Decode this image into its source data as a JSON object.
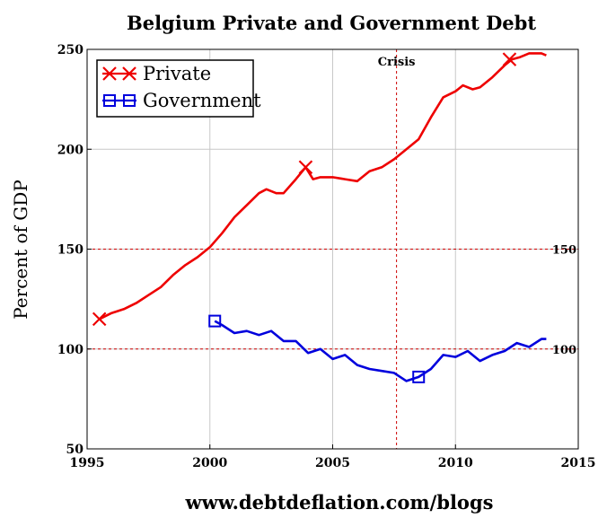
{
  "chart_data": {
    "type": "line",
    "title": "Belgium Private and Government Debt",
    "ylabel": "Percent of GDP",
    "xlabel": "",
    "footer": "www.debtdeflation.com/blogs",
    "xlim": [
      1995,
      2015
    ],
    "ylim": [
      50,
      250
    ],
    "x_ticks": [
      "1995",
      "2000",
      "2005",
      "2010",
      "2015"
    ],
    "y_ticks": [
      "50",
      "100",
      "150",
      "200",
      "250"
    ],
    "legend_position": "top-left",
    "grid": true,
    "reference_lines": [
      {
        "axis": "y",
        "value": 150,
        "label": "150",
        "color": "#cc0000"
      },
      {
        "axis": "y",
        "value": 100,
        "label": "100",
        "color": "#cc0000"
      },
      {
        "axis": "x",
        "value": 2007.6,
        "label": "Crisis",
        "color": "#cc0000"
      }
    ],
    "series": [
      {
        "name": "Private",
        "color": "#ee0000",
        "marker": "x",
        "points": [
          [
            1995.5,
            115
          ],
          [
            1996,
            118
          ],
          [
            1996.5,
            120
          ],
          [
            1997,
            123
          ],
          [
            1997.5,
            127
          ],
          [
            1998,
            131
          ],
          [
            1998.5,
            137
          ],
          [
            1999,
            142
          ],
          [
            1999.5,
            146
          ],
          [
            2000,
            151
          ],
          [
            2000.5,
            158
          ],
          [
            2001,
            166
          ],
          [
            2001.5,
            172
          ],
          [
            2002,
            178
          ],
          [
            2002.3,
            180
          ],
          [
            2002.7,
            178
          ],
          [
            2003,
            178
          ],
          [
            2003.5,
            185
          ],
          [
            2003.9,
            191
          ],
          [
            2004.2,
            185
          ],
          [
            2004.5,
            186
          ],
          [
            2005,
            186
          ],
          [
            2005.5,
            185
          ],
          [
            2006,
            184
          ],
          [
            2006.5,
            189
          ],
          [
            2007,
            191
          ],
          [
            2007.5,
            195
          ],
          [
            2008,
            200
          ],
          [
            2008.5,
            205
          ],
          [
            2009,
            216
          ],
          [
            2009.5,
            226
          ],
          [
            2010,
            229
          ],
          [
            2010.3,
            232
          ],
          [
            2010.7,
            230
          ],
          [
            2011,
            231
          ],
          [
            2011.5,
            236
          ],
          [
            2012,
            242
          ],
          [
            2012.3,
            245
          ],
          [
            2012.6,
            246
          ],
          [
            2013,
            248
          ],
          [
            2013.5,
            248
          ],
          [
            2013.7,
            247
          ]
        ],
        "marker_points": [
          [
            1995.5,
            115
          ],
          [
            2003.9,
            191
          ],
          [
            2012.2,
            245
          ]
        ]
      },
      {
        "name": "Government",
        "color": "#0000dd",
        "marker": "square",
        "points": [
          [
            2000.2,
            114
          ],
          [
            2000.5,
            112
          ],
          [
            2001,
            108
          ],
          [
            2001.5,
            109
          ],
          [
            2002,
            107
          ],
          [
            2002.5,
            109
          ],
          [
            2003,
            104
          ],
          [
            2003.5,
            104
          ],
          [
            2004,
            98
          ],
          [
            2004.5,
            100
          ],
          [
            2005,
            95
          ],
          [
            2005.5,
            97
          ],
          [
            2006,
            92
          ],
          [
            2006.5,
            90
          ],
          [
            2007,
            89
          ],
          [
            2007.5,
            88
          ],
          [
            2008,
            84
          ],
          [
            2008.5,
            86
          ],
          [
            2009,
            90
          ],
          [
            2009.5,
            97
          ],
          [
            2010,
            96
          ],
          [
            2010.5,
            99
          ],
          [
            2011,
            94
          ],
          [
            2011.5,
            97
          ],
          [
            2012,
            99
          ],
          [
            2012.5,
            103
          ],
          [
            2013,
            101
          ],
          [
            2013.5,
            105
          ],
          [
            2013.7,
            105
          ]
        ],
        "marker_points": [
          [
            2000.2,
            114
          ],
          [
            2008.5,
            86
          ]
        ]
      }
    ]
  }
}
